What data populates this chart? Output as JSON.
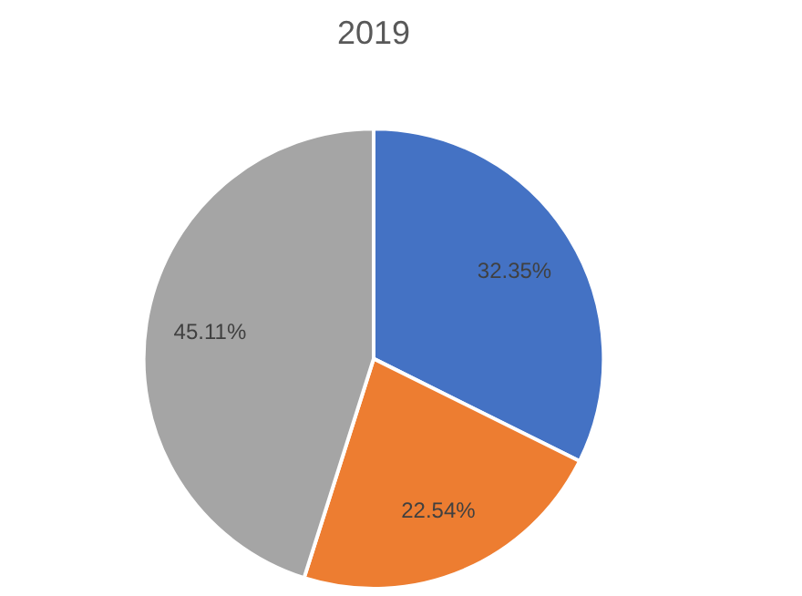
{
  "chart_data": {
    "type": "pie",
    "title": "2019",
    "categories": [
      null,
      null,
      null
    ],
    "values": [
      32.35,
      22.54,
      45.11
    ],
    "value_labels": [
      "32.35%",
      "22.54%",
      "45.11%"
    ],
    "colors": [
      "#4472c4",
      "#ed7d31",
      "#a5a5a5"
    ]
  }
}
